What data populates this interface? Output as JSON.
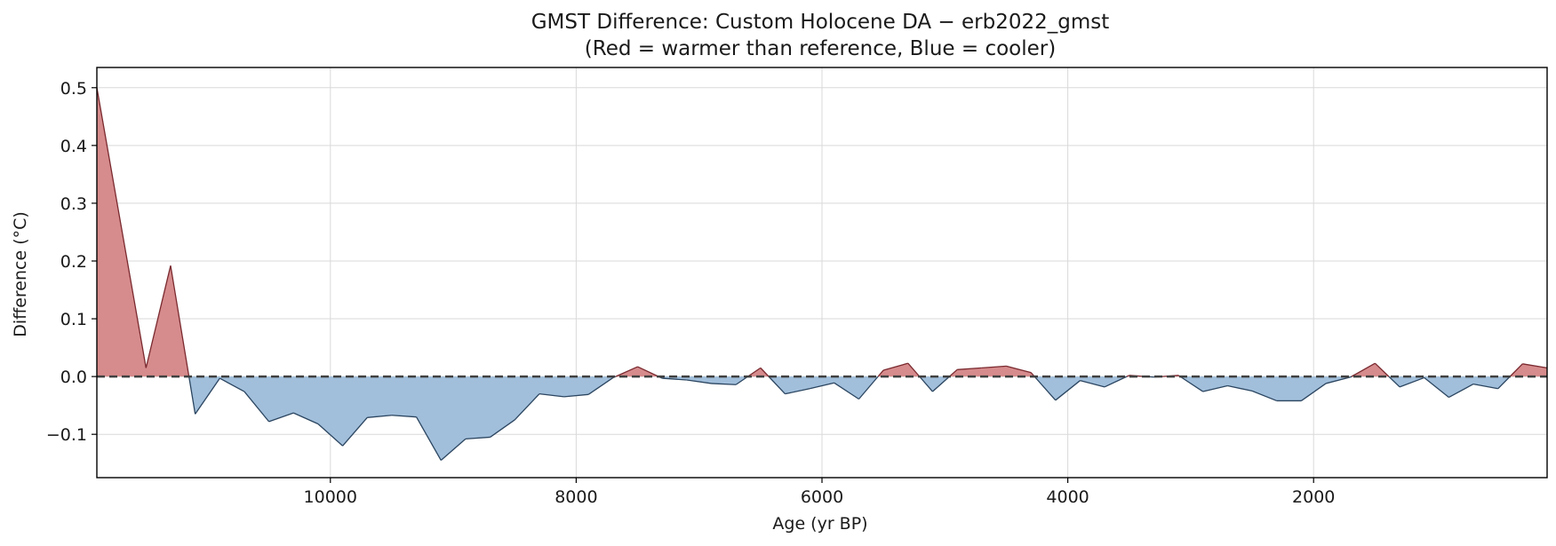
{
  "chart_data": {
    "type": "area",
    "title": "GMST Difference: Custom Holocene DA − erb2022_gmst",
    "subtitle": "(Red = warmer than reference, Blue = cooler)",
    "xlabel": "Age (yr BP)",
    "ylabel": "Difference (°C)",
    "x_reversed": true,
    "xlim": [
      11900,
      100
    ],
    "ylim": [
      -0.175,
      0.535
    ],
    "xticks": [
      10000,
      8000,
      6000,
      4000,
      2000
    ],
    "yticks": [
      -0.1,
      0.0,
      0.1,
      0.2,
      0.3,
      0.4,
      0.5
    ],
    "ytick_labels": [
      "−0.1",
      "0.0",
      "0.1",
      "0.2",
      "0.3",
      "0.4",
      "0.5"
    ],
    "grid": true,
    "reference_line": 0,
    "colors": {
      "positive_fill": "#d68b8c",
      "positive_line": "#7a2a2f",
      "negative_fill": "#a1bfdb",
      "negative_line": "#2b4560",
      "reference_line": "#404040"
    },
    "series": [
      {
        "x": [
          11900,
          11500,
          11300,
          11100,
          10900,
          10700,
          10500,
          10300,
          10100,
          9900,
          9700,
          9500,
          9300,
          9100,
          8900,
          8700,
          8500,
          8300,
          8100,
          7900,
          7700,
          7500,
          7300,
          7100,
          6900,
          6700,
          6500,
          6300,
          6100,
          5900,
          5700,
          5500,
          5300,
          5100,
          4900,
          4700,
          4500,
          4300,
          4100,
          3900,
          3700,
          3500,
          3300,
          3100,
          2900,
          2700,
          2500,
          2300,
          2100,
          1900,
          1700,
          1500,
          1300,
          1100,
          900,
          700,
          500,
          300,
          100
        ],
        "y": [
          0.5,
          0.015,
          0.192,
          -0.065,
          -0.003,
          -0.026,
          -0.078,
          -0.063,
          -0.082,
          -0.12,
          -0.071,
          -0.067,
          -0.07,
          -0.145,
          -0.108,
          -0.105,
          -0.075,
          -0.03,
          -0.035,
          -0.031,
          -0.002,
          0.017,
          -0.003,
          -0.006,
          -0.012,
          -0.014,
          0.015,
          -0.03,
          -0.021,
          -0.011,
          -0.039,
          0.011,
          0.023,
          -0.026,
          0.012,
          0.015,
          0.018,
          0.007,
          -0.041,
          -0.007,
          -0.018,
          0.002,
          -0.001,
          0.002,
          -0.026,
          -0.016,
          -0.025,
          -0.042,
          -0.042,
          -0.012,
          -0.001,
          0.023,
          -0.018,
          -0.002,
          -0.036,
          -0.013,
          -0.021,
          0.022,
          0.015
        ]
      }
    ]
  }
}
